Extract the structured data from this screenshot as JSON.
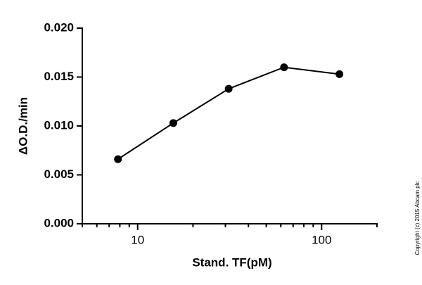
{
  "chart_data": {
    "type": "line",
    "x_label": "Stand. TF(pM)",
    "y_label": "ΔO.D./min",
    "copyright": "Copyright (c) 2015 Abcam plc",
    "x": [
      7.8125,
      15.625,
      31.25,
      62.5,
      125
    ],
    "series": [
      {
        "color": "#000000",
        "values": [
          0.0066,
          0.0103,
          0.0138,
          0.016,
          0.0153
        ]
      }
    ],
    "x_log": true,
    "xlim": [
      5,
      200
    ],
    "xticks": [
      10,
      100
    ],
    "xminorticks": [
      5,
      6,
      7,
      8,
      9,
      20,
      30,
      40,
      50,
      60,
      70,
      80,
      90,
      200
    ],
    "ylim": [
      0,
      0.02
    ],
    "yticks": [
      {
        "value": 0,
        "label": "0.000"
      },
      {
        "value": 0.005,
        "label": "0.005"
      },
      {
        "value": 0.01,
        "label": "0.010"
      },
      {
        "value": 0.015,
        "label": "0.015"
      },
      {
        "value": 0.02,
        "label": "0.020"
      }
    ]
  }
}
